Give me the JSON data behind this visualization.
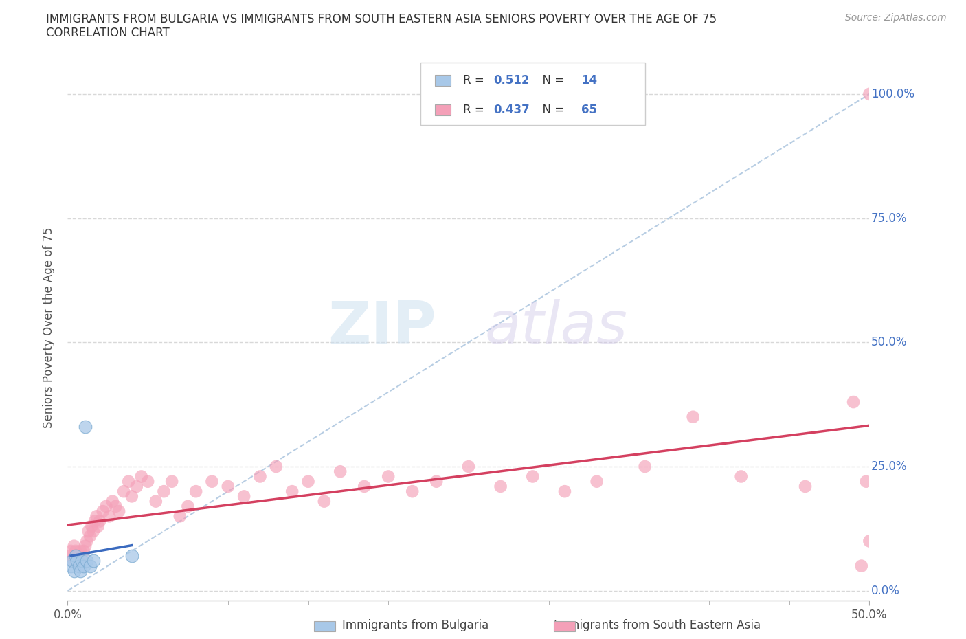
{
  "title_line1": "IMMIGRANTS FROM BULGARIA VS IMMIGRANTS FROM SOUTH EASTERN ASIA SENIORS POVERTY OVER THE AGE OF 75",
  "title_line2": "CORRELATION CHART",
  "source_text": "Source: ZipAtlas.com",
  "ylabel": "Seniors Poverty Over the Age of 75",
  "xlabel_bulgaria": "Immigrants from Bulgaria",
  "xlabel_sea": "Immigrants from South Eastern Asia",
  "r_bulgaria": 0.512,
  "n_bulgaria": 14,
  "r_sea": 0.437,
  "n_sea": 65,
  "xlim": [
    0.0,
    0.5
  ],
  "ylim": [
    -0.02,
    1.08
  ],
  "xtick_positions": [
    0.0,
    0.5
  ],
  "xtick_labels": [
    "0.0%",
    "50.0%"
  ],
  "xtick_minor": [
    0.05,
    0.1,
    0.15,
    0.2,
    0.25,
    0.3,
    0.35,
    0.4,
    0.45
  ],
  "yticks": [
    0.0,
    0.25,
    0.5,
    0.75,
    1.0
  ],
  "ytick_labels": [
    "0.0%",
    "25.0%",
    "50.0%",
    "75.0%",
    "100.0%"
  ],
  "color_bulgaria": "#a8c8e8",
  "color_sea": "#f4a0b8",
  "line_color_bulgaria": "#3a6abf",
  "line_color_sea": "#d44060",
  "diagonal_color": "#b0c8e0",
  "watermark_zip": "ZIP",
  "watermark_atlas": "atlas",
  "bg_color": "#ffffff",
  "grid_color": "#d8d8d8",
  "title_color": "#333333",
  "ylabel_color": "#555555",
  "ytick_color": "#4472c4",
  "xtick_color": "#555555",
  "source_color": "#999999",
  "legend_text_color": "#333333",
  "legend_num_color": "#4472c4",
  "bulgaria_x": [
    0.002,
    0.003,
    0.004,
    0.005,
    0.006,
    0.007,
    0.008,
    0.009,
    0.01,
    0.011,
    0.012,
    0.014,
    0.016,
    0.04
  ],
  "bulgaria_y": [
    0.05,
    0.06,
    0.04,
    0.07,
    0.06,
    0.05,
    0.04,
    0.06,
    0.05,
    0.33,
    0.06,
    0.05,
    0.06,
    0.07
  ],
  "sea_x": [
    0.001,
    0.002,
    0.003,
    0.004,
    0.005,
    0.006,
    0.007,
    0.008,
    0.009,
    0.01,
    0.011,
    0.012,
    0.013,
    0.014,
    0.015,
    0.016,
    0.017,
    0.018,
    0.019,
    0.02,
    0.022,
    0.024,
    0.026,
    0.028,
    0.03,
    0.032,
    0.035,
    0.038,
    0.04,
    0.043,
    0.046,
    0.05,
    0.055,
    0.06,
    0.065,
    0.07,
    0.075,
    0.08,
    0.09,
    0.1,
    0.11,
    0.12,
    0.13,
    0.14,
    0.15,
    0.16,
    0.17,
    0.185,
    0.2,
    0.215,
    0.23,
    0.25,
    0.27,
    0.29,
    0.31,
    0.33,
    0.36,
    0.39,
    0.42,
    0.46,
    0.49,
    0.495,
    0.498,
    0.5,
    0.5
  ],
  "sea_y": [
    0.07,
    0.08,
    0.06,
    0.09,
    0.08,
    0.07,
    0.06,
    0.08,
    0.07,
    0.08,
    0.09,
    0.1,
    0.12,
    0.11,
    0.13,
    0.12,
    0.14,
    0.15,
    0.13,
    0.14,
    0.16,
    0.17,
    0.15,
    0.18,
    0.17,
    0.16,
    0.2,
    0.22,
    0.19,
    0.21,
    0.23,
    0.22,
    0.18,
    0.2,
    0.22,
    0.15,
    0.17,
    0.2,
    0.22,
    0.21,
    0.19,
    0.23,
    0.25,
    0.2,
    0.22,
    0.18,
    0.24,
    0.21,
    0.23,
    0.2,
    0.22,
    0.25,
    0.21,
    0.23,
    0.2,
    0.22,
    0.25,
    0.35,
    0.23,
    0.21,
    0.38,
    0.05,
    0.22,
    1.0,
    0.1
  ]
}
